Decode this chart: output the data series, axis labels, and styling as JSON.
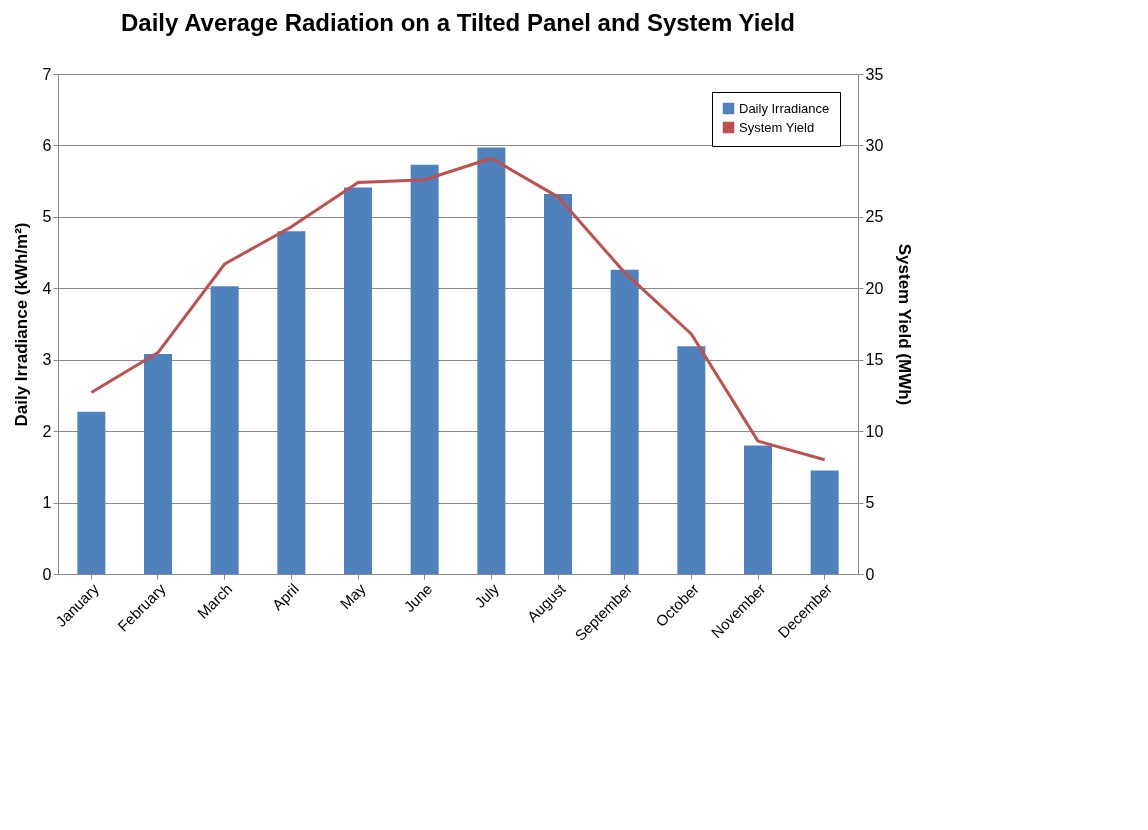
{
  "chart_data": {
    "type": "bar",
    "title": "Daily Average Radiation on a Tilted Panel and System Yield",
    "categories": [
      "January",
      "February",
      "March",
      "April",
      "May",
      "June",
      "July",
      "August",
      "September",
      "October",
      "November",
      "December"
    ],
    "series": [
      {
        "name": "Daily Irradiance",
        "color": "#4f81bd",
        "values": [
          2.27,
          3.08,
          4.03,
          4.8,
          5.41,
          5.73,
          5.97,
          5.32,
          4.26,
          3.19,
          1.8,
          1.45
        ]
      },
      {
        "name": "System Yield",
        "type": "line",
        "axis": "y2",
        "color": "#c0504d",
        "values": [
          12.7,
          15.5,
          21.7,
          24.3,
          27.4,
          27.6,
          29.1,
          26.4,
          21.1,
          16.8,
          9.3,
          8.0
        ]
      }
    ],
    "ylabel": "Daily Irradiance (kWh/m²)",
    "y2label": "System Yield (MWh)",
    "ylim": [
      0,
      7
    ],
    "yticks": [
      0,
      1,
      2,
      3,
      4,
      5,
      6,
      7
    ],
    "y2lim": [
      0,
      35
    ],
    "y2ticks": [
      0,
      5,
      10,
      15,
      20,
      25,
      30,
      35
    ],
    "grid": "y",
    "legend": "top right",
    "marker": "none",
    "line_style": "solid"
  }
}
